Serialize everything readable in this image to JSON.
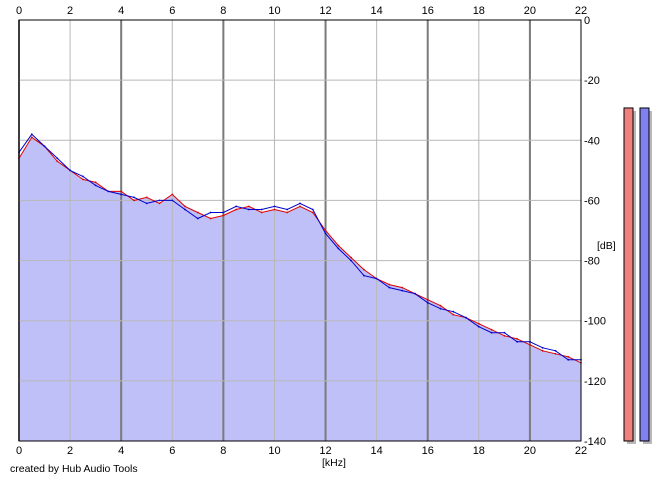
{
  "chart_data": {
    "type": "line",
    "xlabel": "[kHz]",
    "ylabel": "[dB]",
    "xlim": [
      0,
      22
    ],
    "ylim": [
      -140,
      0
    ],
    "x_ticks": [
      "0",
      "2",
      "4",
      "6",
      "8",
      "10",
      "12",
      "14",
      "16",
      "18",
      "20",
      "22"
    ],
    "y_ticks": [
      "0",
      "-20",
      "-40",
      "-60",
      "-80",
      "-100",
      "-120",
      "-140"
    ],
    "grid": true,
    "fill_color": "#c0c0f8",
    "series": [
      {
        "color": "#e00000",
        "x": [
          0,
          0.5,
          1,
          1.5,
          2,
          2.5,
          3,
          3.5,
          4,
          4.5,
          5,
          5.5,
          6,
          6.5,
          7,
          7.5,
          8,
          8.5,
          9,
          9.5,
          10,
          10.5,
          11,
          11.5,
          12,
          12.5,
          13,
          13.5,
          14,
          14.5,
          15,
          15.5,
          16,
          16.5,
          17,
          17.5,
          18,
          18.5,
          19,
          19.5,
          20,
          20.5,
          21,
          21.5,
          22
        ],
        "y": [
          -46,
          -39,
          -42,
          -47,
          -50,
          -53,
          -54,
          -57,
          -57,
          -60,
          -59,
          -61,
          -58,
          -62,
          -64,
          -66,
          -65,
          -63,
          -62,
          -64,
          -63,
          -64,
          -62,
          -64,
          -70,
          -75,
          -79,
          -83,
          -86,
          -88,
          -89,
          -91,
          -93,
          -95,
          -98,
          -99,
          -101,
          -103,
          -105,
          -106,
          -108,
          -110,
          -111,
          -112,
          -114
        ]
      },
      {
        "color": "#0000cc",
        "x": [
          0,
          0.5,
          1,
          1.5,
          2,
          2.5,
          3,
          3.5,
          4,
          4.5,
          5,
          5.5,
          6,
          6.5,
          7,
          7.5,
          8,
          8.5,
          9,
          9.5,
          10,
          10.5,
          11,
          11.5,
          12,
          12.5,
          13,
          13.5,
          14,
          14.5,
          15,
          15.5,
          16,
          16.5,
          17,
          17.5,
          18,
          18.5,
          19,
          19.5,
          20,
          20.5,
          21,
          21.5,
          22
        ],
        "y": [
          -44,
          -38,
          -42,
          -46,
          -50,
          -52,
          -55,
          -57,
          -58,
          -59,
          -61,
          -60,
          -60,
          -63,
          -66,
          -64,
          -64,
          -62,
          -63,
          -63,
          -62,
          -63,
          -61,
          -63,
          -71,
          -76,
          -80,
          -85,
          -86,
          -89,
          -90,
          -91,
          -94,
          -96,
          -97,
          -99,
          -102,
          -104,
          -104,
          -107,
          -107,
          -109,
          -110,
          -113,
          -113
        ]
      }
    ]
  },
  "meters": {
    "scale": "0..-140 dB",
    "left": {
      "level_db": -16,
      "color": "#f08080"
    },
    "right": {
      "level_db": -16,
      "color": "#8080f0"
    }
  },
  "footer": {
    "credit": "created by Hub Audio Tools"
  }
}
